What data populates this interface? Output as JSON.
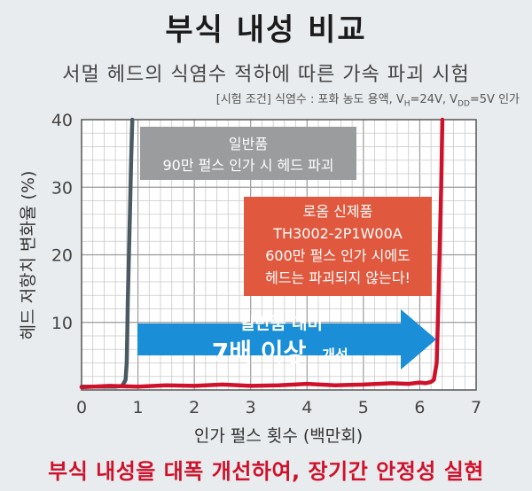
{
  "header": {
    "title": "부식 내성 비교",
    "subtitle": "서멀 헤드의 식염수 적하에 따른 가속 파괴 시험",
    "condition_prefix": "[시험 조건] 식염수 : 포화 농도 용액, V",
    "condition_vh_sub": "H",
    "condition_mid": "=24V, V",
    "condition_vdd_sub": "DD",
    "condition_suffix": "=5V 인가"
  },
  "footer": {
    "text": "부식 내성을 대폭 개선하여, 장기간 안정성 실현"
  },
  "colors": {
    "conventional": "#4a5a63",
    "rohm": "#d0112b",
    "conventional_box": "#9a9c9e",
    "rohm_box": "#e0583e",
    "arrow": "#1a8fd8"
  },
  "chart_data": {
    "type": "line",
    "xlabel": "인가 펄스 횟수 (백만회)",
    "ylabel": "헤드 저항치 변화율 (%)",
    "xlim": [
      0,
      7
    ],
    "ylim": [
      0,
      40
    ],
    "xticks": [
      "0",
      "1",
      "2",
      "3",
      "4",
      "5",
      "6",
      "7"
    ],
    "yticks": [
      "10",
      "20",
      "30",
      "40"
    ],
    "grid": true,
    "series": [
      {
        "name": "일반품",
        "color": "#4a5a63",
        "x": [
          0.0,
          0.3,
          0.6,
          0.72,
          0.78,
          0.8,
          0.81,
          0.82,
          0.84,
          0.86,
          0.88,
          0.9
        ],
        "y": [
          0.5,
          0.5,
          0.5,
          0.6,
          1.5,
          4.0,
          8.0,
          13.0,
          20.0,
          27.0,
          34.0,
          40.0
        ]
      },
      {
        "name": "로옴 신제품",
        "color": "#d0112b",
        "x": [
          0.0,
          0.5,
          1.0,
          1.5,
          2.0,
          2.5,
          3.0,
          3.5,
          4.0,
          4.5,
          5.0,
          5.5,
          5.8,
          6.0,
          6.1,
          6.2,
          6.25,
          6.3,
          6.32,
          6.35,
          6.38,
          6.4
        ],
        "y": [
          0.4,
          0.6,
          0.5,
          0.7,
          0.6,
          0.8,
          0.6,
          0.7,
          0.9,
          0.7,
          0.8,
          1.0,
          0.9,
          1.1,
          1.0,
          1.2,
          1.5,
          4.0,
          10.0,
          20.0,
          30.0,
          40.0
        ]
      }
    ],
    "annotations": {
      "conventional": [
        "일반품",
        "90만 펄스 인가 시 헤드 파괴"
      ],
      "rohm": [
        "로옴 신제품",
        "TH3002-2P1W00A",
        "600만 펄스 인가 시에도",
        "헤드는 파괴되지 않는다!"
      ],
      "arrow_top": "일반품 대비",
      "arrow_big": "7배 이상",
      "arrow_small": "개선"
    }
  }
}
